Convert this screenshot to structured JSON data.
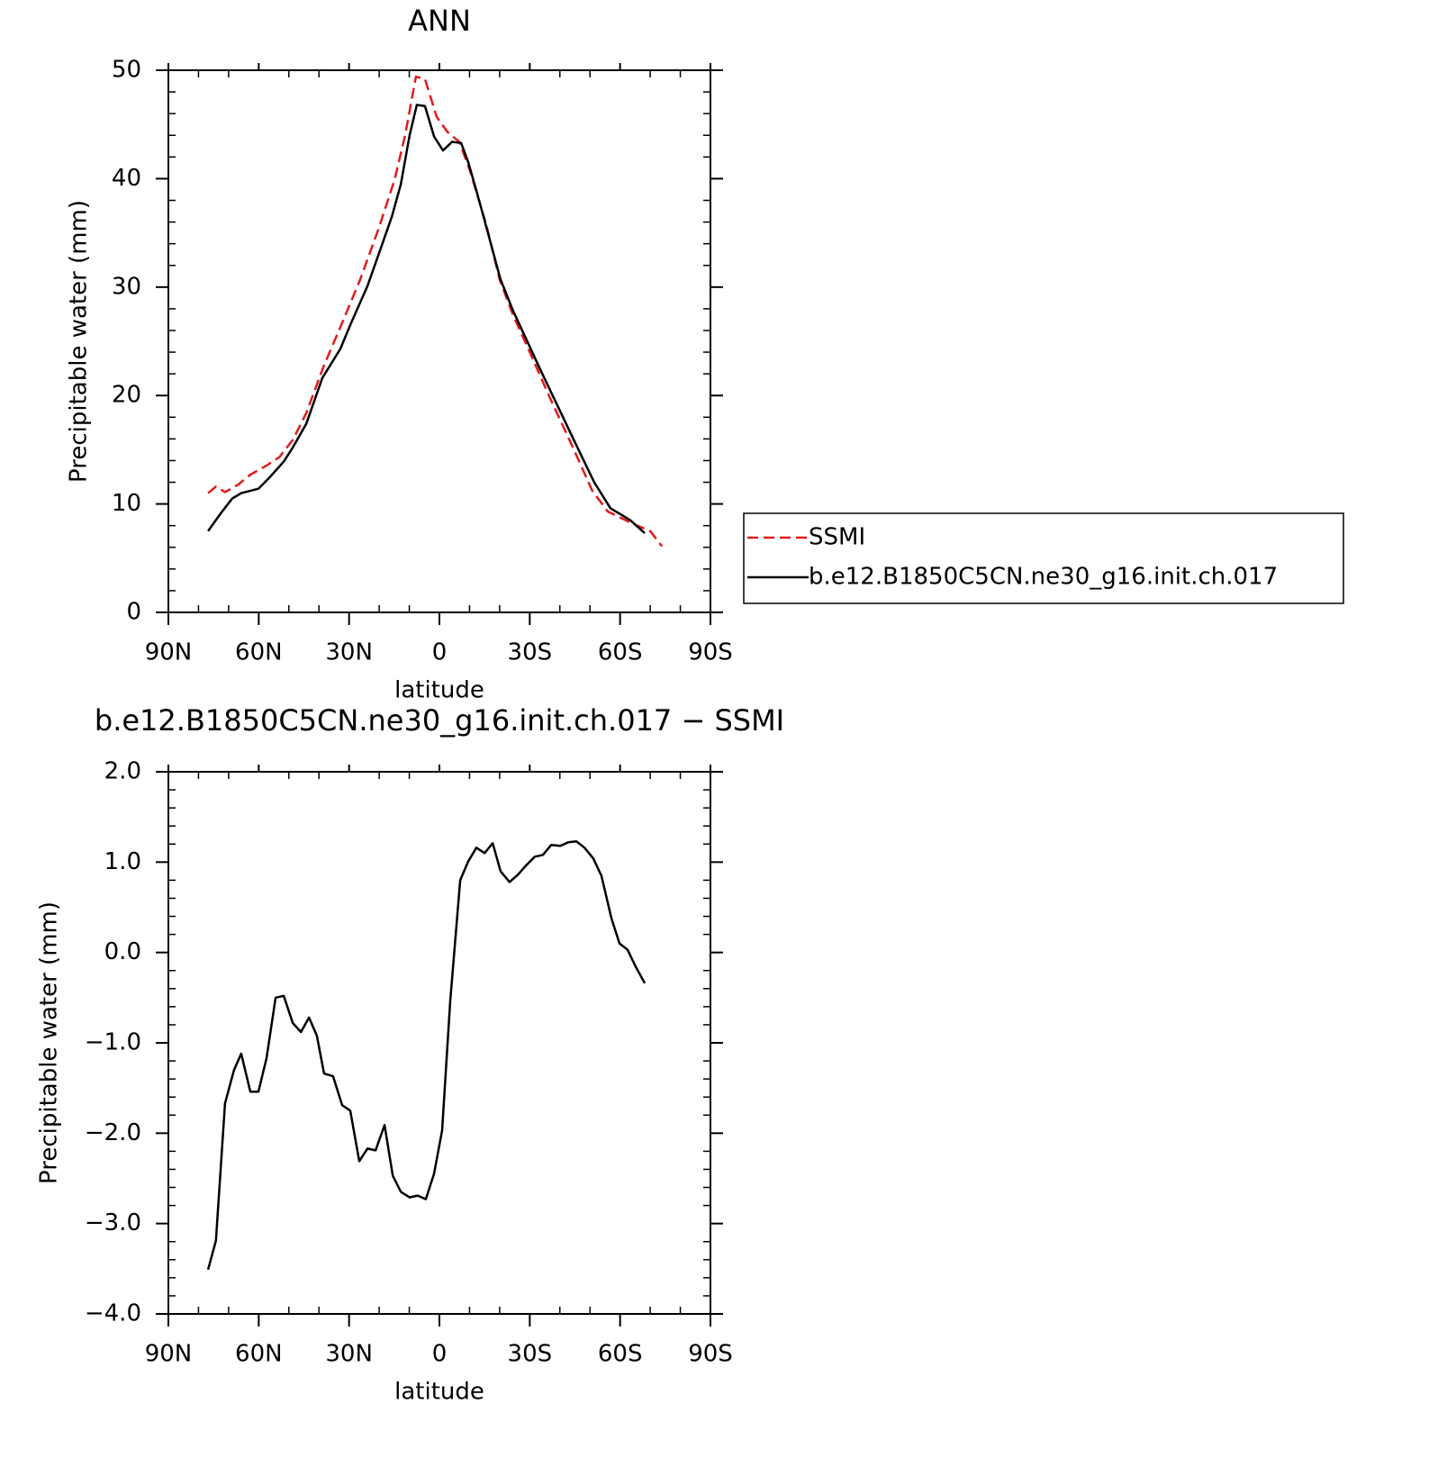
{
  "chart_data": [
    {
      "type": "line",
      "title": "ANN",
      "xlabel": "latitude",
      "ylabel": "Precipitable water (mm)",
      "xlim": [
        90,
        -90
      ],
      "xticks": [
        {
          "value": 90,
          "label": "90N"
        },
        {
          "value": 60,
          "label": "60N"
        },
        {
          "value": 30,
          "label": "30N"
        },
        0,
        {
          "value": -30,
          "label": "30S"
        },
        {
          "value": -60,
          "label": "60S"
        },
        {
          "value": -90,
          "label": "90S"
        }
      ],
      "ylim": [
        0,
        50
      ],
      "yticks": [
        0,
        10,
        20,
        30,
        40,
        50
      ],
      "legend": "right",
      "series": [
        {
          "name": "SSMI",
          "color": "#e31a1c",
          "linestyle": "dashed",
          "x": [
            76.8,
            74.2,
            71.2,
            66.7,
            62.8,
            57.7,
            53.2,
            48.7,
            44.2,
            38.3,
            32.9,
            26.3,
            20.3,
            14.9,
            11.4,
            7.8,
            4.8,
            0.9,
            -2.7,
            -6.6,
            -10.2,
            -15.6,
            -20.0,
            -24.5,
            -30.5,
            -36.5,
            -44.0,
            -50.8,
            -55.9,
            -60.4,
            -64.9,
            -70.0,
            -73.9
          ],
          "values": [
            11.0,
            11.6,
            11.1,
            11.8,
            12.7,
            13.5,
            14.3,
            15.9,
            18.4,
            22.8,
            26.3,
            30.7,
            35.3,
            39.9,
            44.0,
            49.4,
            49.2,
            45.7,
            44.3,
            43.4,
            40.7,
            35.7,
            30.7,
            27.4,
            23.7,
            19.9,
            15.4,
            11.2,
            9.3,
            8.7,
            8.1,
            7.5,
            6.1
          ]
        },
        {
          "name": "b.e12.B1850C5CN.ne30_g16.init.ch.017",
          "color": "#000000",
          "linestyle": "solid",
          "x": [
            76.8,
            72.7,
            68.8,
            65.8,
            60.1,
            56.2,
            51.7,
            48.7,
            44.2,
            38.9,
            32.9,
            29.3,
            23.9,
            19.7,
            15.8,
            12.8,
            9.9,
            7.5,
            4.8,
            1.8,
            -1.2,
            -4.2,
            -7.2,
            -9.6,
            -12.6,
            -16.5,
            -20.3,
            -24.5,
            -29.0,
            -33.5,
            -39.5,
            -45.5,
            -51.4,
            -56.8,
            -60.4,
            -63.4,
            -68.2
          ],
          "values": [
            7.5,
            9.1,
            10.5,
            11.0,
            11.4,
            12.5,
            13.9,
            15.2,
            17.4,
            21.6,
            24.3,
            26.7,
            30.1,
            33.4,
            36.5,
            39.5,
            44.0,
            46.8,
            46.7,
            43.9,
            42.6,
            43.4,
            43.3,
            41.5,
            38.6,
            34.6,
            30.7,
            27.8,
            25.1,
            22.4,
            18.9,
            15.4,
            12.0,
            9.6,
            9.0,
            8.5,
            7.3
          ]
        }
      ]
    },
    {
      "type": "line",
      "title": "b.e12.B1850C5CN.ne30_g16.init.ch.017 − SSMI",
      "xlabel": "latitude",
      "ylabel": "Precipitable water (mm)",
      "xlim": [
        90,
        -90
      ],
      "xticks": [
        {
          "value": 90,
          "label": "90N"
        },
        {
          "value": 60,
          "label": "60N"
        },
        {
          "value": 30,
          "label": "30N"
        },
        0,
        {
          "value": -30,
          "label": "30S"
        },
        {
          "value": -60,
          "label": "60S"
        },
        {
          "value": -90,
          "label": "90S"
        }
      ],
      "ylim": [
        -4,
        2
      ],
      "yticks": [
        {
          "value": -4,
          "label": "−4.0"
        },
        {
          "value": -3,
          "label": "−3.0"
        },
        {
          "value": -2,
          "label": "−2.0"
        },
        {
          "value": -1,
          "label": "−1.0"
        },
        {
          "value": 0,
          "label": "0.0"
        },
        {
          "value": 1,
          "label": "1.0"
        },
        {
          "value": 2,
          "label": "2.0"
        }
      ],
      "series": [
        {
          "color": "#000000",
          "linestyle": "solid",
          "x": [
            76.8,
            74.2,
            71.2,
            68.2,
            65.8,
            62.8,
            60.1,
            57.4,
            54.4,
            51.7,
            48.7,
            46.0,
            43.3,
            40.7,
            38.3,
            35.3,
            32.3,
            29.6,
            26.6,
            23.9,
            21.2,
            18.2,
            15.5,
            12.8,
            9.9,
            7.2,
            4.5,
            1.8,
            -0.9,
            -3.6,
            -6.9,
            -9.6,
            -12.3,
            -15.0,
            -17.7,
            -20.3,
            -23.3,
            -26.0,
            -28.7,
            -31.7,
            -34.4,
            -37.1,
            -40.1,
            -42.8,
            -45.5,
            -48.2,
            -51.1,
            -53.8,
            -57.1,
            -59.8,
            -62.5,
            -65.2,
            -68.2
          ],
          "values": [
            -3.51,
            -3.19,
            -1.67,
            -1.3,
            -1.12,
            -1.54,
            -1.54,
            -1.17,
            -0.5,
            -0.48,
            -0.78,
            -0.88,
            -0.72,
            -0.92,
            -1.34,
            -1.37,
            -1.69,
            -1.75,
            -2.31,
            -2.17,
            -2.19,
            -1.91,
            -2.47,
            -2.65,
            -2.71,
            -2.69,
            -2.73,
            -2.45,
            -1.97,
            -0.54,
            0.8,
            1.01,
            1.16,
            1.1,
            1.21,
            0.9,
            0.78,
            0.86,
            0.96,
            1.06,
            1.08,
            1.19,
            1.18,
            1.22,
            1.23,
            1.16,
            1.04,
            0.85,
            0.38,
            0.1,
            0.03,
            -0.16,
            -0.34
          ]
        }
      ]
    }
  ]
}
